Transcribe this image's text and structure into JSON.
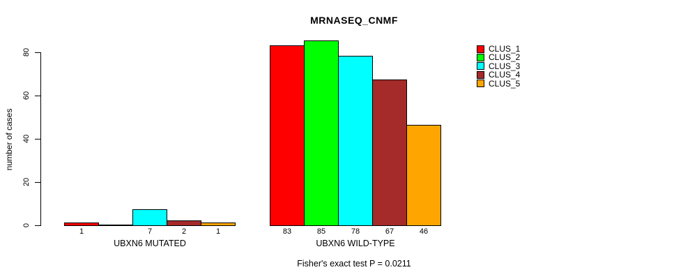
{
  "title": "MRNASEQ_CNMF",
  "y_axis": {
    "label": "number of cases"
  },
  "footnote": "Fisher's exact test P = 0.0211",
  "chart_data": {
    "type": "bar",
    "title": "MRNASEQ_CNMF",
    "xlabel": "",
    "ylabel": "number of cases",
    "ylim": [
      0,
      85
    ],
    "yticks": [
      0,
      20,
      40,
      60,
      80
    ],
    "grid": false,
    "legend_position": "top-right",
    "annotation": "Fisher's exact test P = 0.0211",
    "categories": [
      "UBXN6 MUTATED",
      "UBXN6 WILD-TYPE"
    ],
    "series": [
      {
        "name": "CLUS_1",
        "color": "#FF0000",
        "values": [
          1,
          83
        ]
      },
      {
        "name": "CLUS_2",
        "color": "#00FF00",
        "values": [
          0,
          85
        ]
      },
      {
        "name": "CLUS_3",
        "color": "#00FFFF",
        "values": [
          7,
          78
        ]
      },
      {
        "name": "CLUS_4",
        "color": "#A52A2A",
        "values": [
          2,
          67
        ]
      },
      {
        "name": "CLUS_5",
        "color": "#FFA500",
        "values": [
          1,
          46
        ]
      }
    ],
    "bar_value_labels": [
      [
        "1",
        "",
        "7",
        "2",
        "1"
      ],
      [
        "83",
        "85",
        "78",
        "67",
        "46"
      ]
    ]
  }
}
